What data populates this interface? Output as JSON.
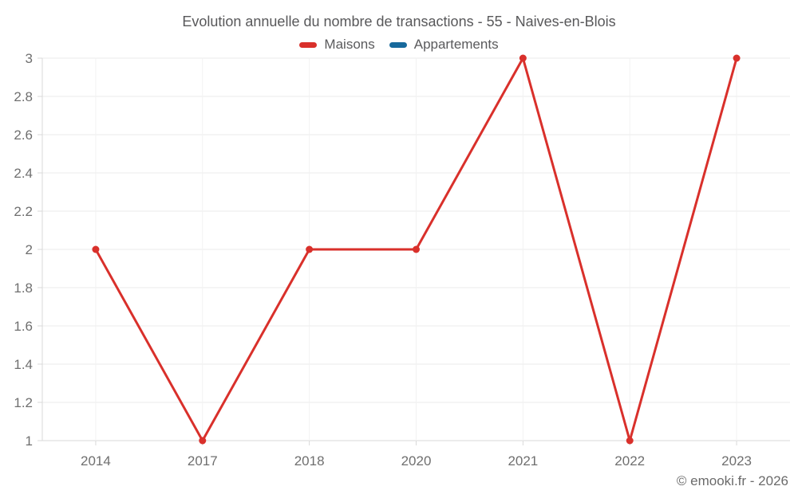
{
  "footer": {
    "text": "© emooki.fr - 2026"
  },
  "chart_data": {
    "type": "line",
    "title": "Evolution annuelle du nombre de transactions - 55 - Naives-en-Blois",
    "categories": [
      "2014",
      "2017",
      "2018",
      "2020",
      "2021",
      "2022",
      "2023"
    ],
    "series": [
      {
        "name": "Maisons",
        "color": "#d9302b",
        "values": [
          2,
          1,
          2,
          2,
          3,
          1,
          3
        ]
      },
      {
        "name": "Appartements",
        "color": "#17699c",
        "values": []
      }
    ],
    "xlabel": "",
    "ylabel": "",
    "ylim": [
      1,
      3
    ],
    "ytick_step": 0.2,
    "grid": true,
    "legend_position": "top",
    "marker_radius": 4.5,
    "line_width": 3
  }
}
